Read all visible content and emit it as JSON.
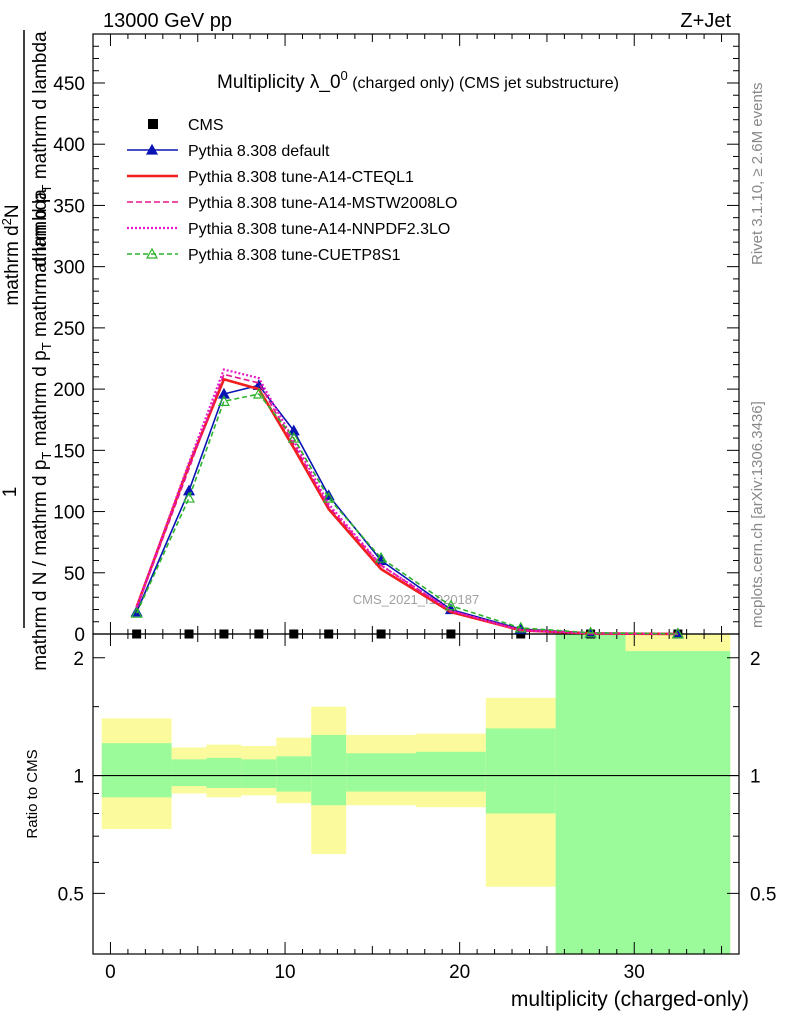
{
  "header": {
    "left": "13000 GeV pp",
    "right": "Z+Jet"
  },
  "side_labels": {
    "rivet": "Rivet 3.1.10, ≥ 2.6M events",
    "mcplots": "mcplots.cern.ch [arXiv:1306.3436]"
  },
  "watermark": "CMS_2021_I1920187",
  "chart_data": [
    {
      "type": "line",
      "title": "Multiplicity λ_0",
      "title_sup": "0",
      "title_suffix": " (charged only) (CMS jet substructure)",
      "ylabel_num": "1",
      "ylabel_den": "mathrm d N / mathrm d p_T mathrm d p_T mathrm d lambda",
      "ylabel_top": "mathrm d^2N",
      "ylim": [
        0,
        490
      ],
      "yticks": [
        0,
        50,
        100,
        150,
        200,
        250,
        300,
        350,
        400,
        450
      ],
      "xlim": [
        -1,
        36
      ],
      "x": [
        1.5,
        4.5,
        6.5,
        8.5,
        10.5,
        12.5,
        15.5,
        19.5,
        23.5,
        27.5,
        32.5
      ],
      "series": [
        {
          "name": "CMS",
          "color": "#000000",
          "style": "marker-square",
          "values": [
            0,
            0,
            0,
            0,
            0,
            0,
            0,
            0,
            0,
            0,
            0
          ]
        },
        {
          "name": "Pythia 8.308 default",
          "color": "#0a14b4",
          "style": "solid-filled-triangle",
          "values": [
            18,
            117,
            196,
            203,
            166,
            113,
            60,
            20,
            4,
            0.8,
            0.2
          ]
        },
        {
          "name": "Pythia 8.308 tune-A14-CTEQL1",
          "color": "#f01e1e",
          "style": "solid-thick",
          "values": [
            22,
            138,
            208,
            200,
            152,
            102,
            53,
            18,
            3,
            0.5,
            0.1
          ]
        },
        {
          "name": "Pythia 8.308 tune-A14-MSTW2008LO",
          "color": "#e6148c",
          "style": "dashed",
          "values": [
            21,
            135,
            212,
            205,
            155,
            104,
            56,
            19,
            3,
            0.6,
            0.1
          ]
        },
        {
          "name": "Pythia 8.308 tune-A14-NNPDF2.3LO",
          "color": "#e619c8",
          "style": "dotted",
          "values": [
            22,
            140,
            216,
            209,
            158,
            106,
            56,
            19,
            3,
            0.6,
            0.1
          ]
        },
        {
          "name": "Pythia 8.308 tune-CUETP8S1",
          "color": "#2db42d",
          "style": "dashed-open-triangle",
          "values": [
            17,
            111,
            190,
            196,
            160,
            111,
            62,
            23,
            5,
            1,
            0.2
          ]
        }
      ]
    },
    {
      "type": "area",
      "ylabel": "Ratio to CMS",
      "ylim": [
        0.35,
        2.3
      ],
      "yticks": [
        0.5,
        1,
        2
      ],
      "ytick_labels": [
        "0.5",
        "1",
        "2"
      ],
      "xlabel": "multiplicity (charged-only)",
      "xticks": [
        0,
        10,
        20,
        30
      ],
      "xlim": [
        -1,
        36
      ],
      "reference": 1,
      "bins": [
        {
          "x": [
            -0.5,
            3.5
          ],
          "outer": [
            0.73,
            1.4
          ],
          "inner": [
            0.88,
            1.21
          ]
        },
        {
          "x": [
            3.5,
            5.5
          ],
          "outer": [
            0.9,
            1.18
          ],
          "inner": [
            0.94,
            1.1
          ]
        },
        {
          "x": [
            5.5,
            7.5
          ],
          "outer": [
            0.88,
            1.2
          ],
          "inner": [
            0.93,
            1.11
          ]
        },
        {
          "x": [
            7.5,
            9.5
          ],
          "outer": [
            0.89,
            1.19
          ],
          "inner": [
            0.93,
            1.1
          ]
        },
        {
          "x": [
            9.5,
            11.5
          ],
          "outer": [
            0.85,
            1.25
          ],
          "inner": [
            0.91,
            1.12
          ]
        },
        {
          "x": [
            11.5,
            13.5
          ],
          "outer": [
            0.63,
            1.5
          ],
          "inner": [
            0.84,
            1.27
          ]
        },
        {
          "x": [
            13.5,
            17.5
          ],
          "outer": [
            0.84,
            1.27
          ],
          "inner": [
            0.91,
            1.14
          ]
        },
        {
          "x": [
            17.5,
            21.5
          ],
          "outer": [
            0.83,
            1.28
          ],
          "inner": [
            0.91,
            1.15
          ]
        },
        {
          "x": [
            21.5,
            25.5
          ],
          "outer": [
            0.52,
            1.58
          ],
          "inner": [
            0.8,
            1.32
          ]
        },
        {
          "x": [
            25.5,
            29.5
          ],
          "outer": [
            0.35,
            2.3
          ],
          "inner": [
            0.35,
            2.3
          ]
        },
        {
          "x": [
            29.5,
            35.5
          ],
          "outer": [
            0.35,
            2.3
          ],
          "inner": [
            0.35,
            2.08
          ]
        }
      ],
      "colors": {
        "outer": "#fbfb9d",
        "inner": "#9bfb9b"
      }
    }
  ]
}
